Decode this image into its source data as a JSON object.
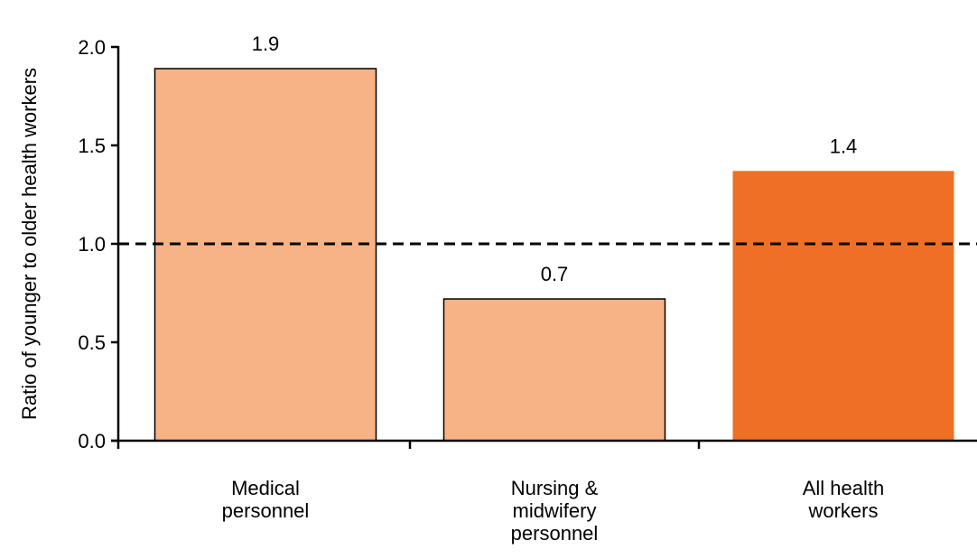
{
  "chart_data": {
    "type": "bar",
    "categories": [
      [
        "Medical",
        "personnel"
      ],
      [
        "Nursing &",
        "midwifery",
        "personnel"
      ],
      [
        "All health",
        "workers"
      ]
    ],
    "values": [
      1.89,
      0.72,
      1.37
    ],
    "data_labels": [
      "1.9",
      "0.7",
      "1.4"
    ],
    "bar_colors": [
      "#f7b385",
      "#f7b385",
      "#ef7024"
    ],
    "bar_outlines": [
      "#000000",
      "#000000",
      "none"
    ],
    "title": "",
    "xlabel": "",
    "ylabel": "Ratio of younger to older health workers",
    "ylim": [
      0,
      2.0
    ],
    "yticks": [
      0.0,
      0.5,
      1.0,
      1.5,
      2.0
    ],
    "ytick_labels": [
      "0.0",
      "0.5",
      "1.0",
      "1.5",
      "2.0"
    ],
    "reference_line": {
      "value": 1.0,
      "style": "dashed"
    },
    "grid": false,
    "legend": "none"
  }
}
